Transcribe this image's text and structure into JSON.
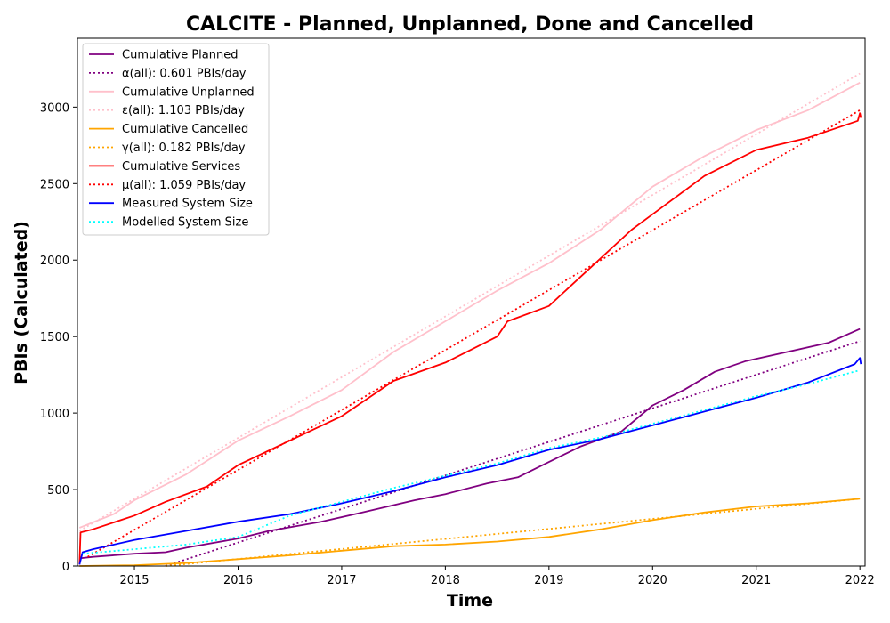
{
  "chart_data": {
    "type": "line",
    "title": "CALCITE - Planned, Unplanned, Done  and Cancelled",
    "xlabel": "Time",
    "ylabel": "PBIs (Calculated)",
    "xlim": [
      2014.45,
      2022.05
    ],
    "ylim": [
      0,
      3450
    ],
    "x_ticks": [
      2015,
      2016,
      2017,
      2018,
      2019,
      2020,
      2021,
      2022
    ],
    "y_ticks": [
      0,
      500,
      1000,
      1500,
      2000,
      2500,
      3000
    ],
    "grid": false,
    "legend_position": "top-left",
    "series": [
      {
        "name": "Cumulative Planned",
        "color": "#800080",
        "style": "solid",
        "x": [
          2014.47,
          2014.6,
          2015.0,
          2015.3,
          2015.5,
          2016.0,
          2016.3,
          2016.8,
          2017.2,
          2017.7,
          2018.0,
          2018.4,
          2018.7,
          2019.0,
          2019.3,
          2019.7,
          2020.0,
          2020.3,
          2020.6,
          2020.9,
          2021.3,
          2021.7,
          2022.0
        ],
        "values": [
          50,
          60,
          80,
          90,
          120,
          180,
          230,
          290,
          350,
          430,
          470,
          540,
          580,
          680,
          780,
          880,
          1050,
          1150,
          1270,
          1340,
          1400,
          1460,
          1550
        ]
      },
      {
        "name": "α(all): 0.601 PBIs/day",
        "color": "#800080",
        "style": "dotted",
        "x": [
          2015.3,
          2022.0
        ],
        "values": [
          0,
          1470
        ]
      },
      {
        "name": "Cumulative Unplanned",
        "color": "#ffc0cb",
        "style": "solid",
        "x": [
          2014.47,
          2014.8,
          2015.0,
          2015.5,
          2016.0,
          2016.5,
          2017.0,
          2017.5,
          2018.0,
          2018.5,
          2019.0,
          2019.5,
          2020.0,
          2020.5,
          2021.0,
          2021.5,
          2022.0
        ],
        "values": [
          250,
          340,
          430,
          600,
          820,
          980,
          1150,
          1400,
          1600,
          1800,
          1980,
          2200,
          2480,
          2680,
          2850,
          2980,
          3160
        ]
      },
      {
        "name": "ε(all): 1.103 PBIs/day",
        "color": "#ffc0cb",
        "style": "dotted",
        "x": [
          2014.47,
          2022.0
        ],
        "values": [
          230,
          3220
        ]
      },
      {
        "name": "Cumulative Cancelled",
        "color": "#ffa500",
        "style": "solid",
        "x": [
          2014.47,
          2015.0,
          2015.5,
          2016.0,
          2016.5,
          2017.0,
          2017.5,
          2018.0,
          2018.5,
          2019.0,
          2019.5,
          2020.0,
          2020.5,
          2021.0,
          2021.5,
          2022.0
        ],
        "values": [
          0,
          5,
          20,
          45,
          70,
          100,
          130,
          140,
          160,
          190,
          240,
          300,
          350,
          390,
          410,
          440
        ]
      },
      {
        "name": "γ(all): 0.182 PBIs/day",
        "color": "#ffa500",
        "style": "dotted",
        "x": [
          2015.3,
          2022.0
        ],
        "values": [
          0,
          440
        ]
      },
      {
        "name": "Cumulative Services",
        "color": "#ff0000",
        "style": "solid",
        "x": [
          2014.47,
          2014.48,
          2014.6,
          2015.0,
          2015.3,
          2015.7,
          2016.0,
          2016.5,
          2017.0,
          2017.5,
          2018.0,
          2018.5,
          2018.6,
          2019.0,
          2019.4,
          2019.8,
          2020.0,
          2020.5,
          2021.0,
          2021.5,
          2021.98,
          2022.0,
          2022.01
        ],
        "values": [
          10,
          220,
          240,
          330,
          420,
          520,
          660,
          820,
          980,
          1210,
          1330,
          1500,
          1600,
          1700,
          1950,
          2200,
          2300,
          2550,
          2720,
          2800,
          2910,
          2960,
          2930
        ]
      },
      {
        "name": "μ(all): 1.059 PBIs/day",
        "color": "#ff0000",
        "style": "dotted",
        "x": [
          2014.55,
          2022.0
        ],
        "values": [
          60,
          2980
        ]
      },
      {
        "name": "Measured System Size",
        "color": "#0000ff",
        "style": "solid",
        "x": [
          2014.47,
          2014.5,
          2014.6,
          2015.0,
          2015.5,
          2016.0,
          2016.5,
          2017.0,
          2017.5,
          2018.0,
          2018.5,
          2019.0,
          2019.5,
          2020.0,
          2020.5,
          2021.0,
          2021.5,
          2021.95,
          2022.0,
          2022.01
        ],
        "values": [
          10,
          90,
          110,
          170,
          230,
          290,
          340,
          410,
          490,
          580,
          660,
          760,
          830,
          920,
          1010,
          1100,
          1200,
          1320,
          1360,
          1320
        ]
      },
      {
        "name": "Modelled System Size",
        "color": "#00ffff",
        "style": "dotted",
        "x": [
          2014.5,
          2015.0,
          2015.5,
          2016.0,
          2016.5,
          2017.0,
          2017.5,
          2018.0,
          2018.5,
          2019.0,
          2019.5,
          2020.0,
          2020.5,
          2021.0,
          2021.5,
          2022.0
        ],
        "values": [
          80,
          110,
          140,
          190,
          330,
          420,
          510,
          590,
          670,
          770,
          840,
          930,
          1020,
          1110,
          1190,
          1280
        ]
      }
    ]
  }
}
